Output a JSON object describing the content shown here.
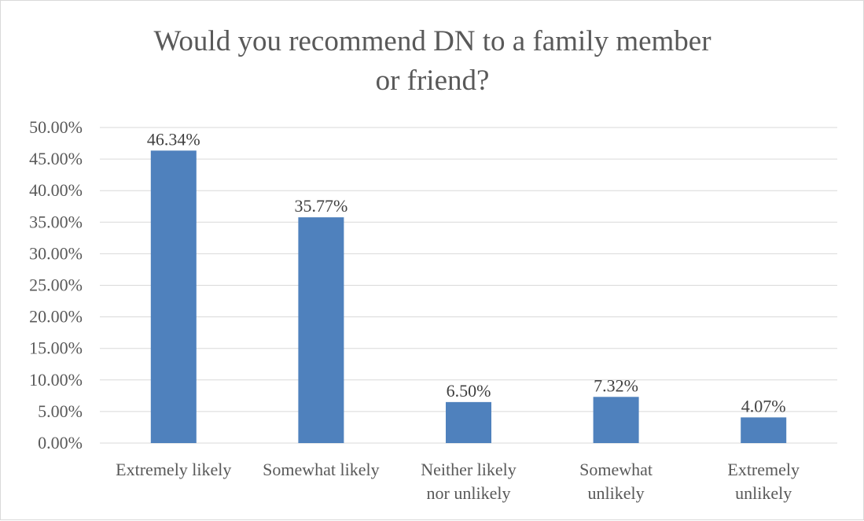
{
  "chart_data": {
    "type": "bar",
    "title": "Would you recommend DN to a family member or friend?",
    "title_lines": [
      "Would you recommend DN to a family member",
      "or friend?"
    ],
    "categories": [
      "Extremely likely",
      "Somewhat likely",
      "Neither likely nor unlikely",
      "Somewhat unlikely",
      "Extremely unlikely"
    ],
    "category_lines": [
      [
        "Extremely likely"
      ],
      [
        "Somewhat likely"
      ],
      [
        "Neither likely",
        "nor unlikely"
      ],
      [
        "Somewhat",
        "unlikely"
      ],
      [
        "Extremely",
        "unlikely"
      ]
    ],
    "values": [
      46.34,
      35.77,
      6.5,
      7.32,
      4.07
    ],
    "data_labels": [
      "46.34%",
      "35.77%",
      "6.50%",
      "7.32%",
      "4.07%"
    ],
    "y_ticks": [
      0,
      5,
      10,
      15,
      20,
      25,
      30,
      35,
      40,
      45,
      50
    ],
    "y_tick_labels": [
      "0.00%",
      "5.00%",
      "10.00%",
      "15.00%",
      "20.00%",
      "25.00%",
      "30.00%",
      "35.00%",
      "40.00%",
      "45.00%",
      "50.00%"
    ],
    "ylim": [
      0,
      50
    ],
    "xlabel": "",
    "ylabel": "",
    "grid": true,
    "legend": "none",
    "colors": {
      "bar": "#4f81bd",
      "grid": "#d9d9d9",
      "text": "#595959"
    }
  }
}
